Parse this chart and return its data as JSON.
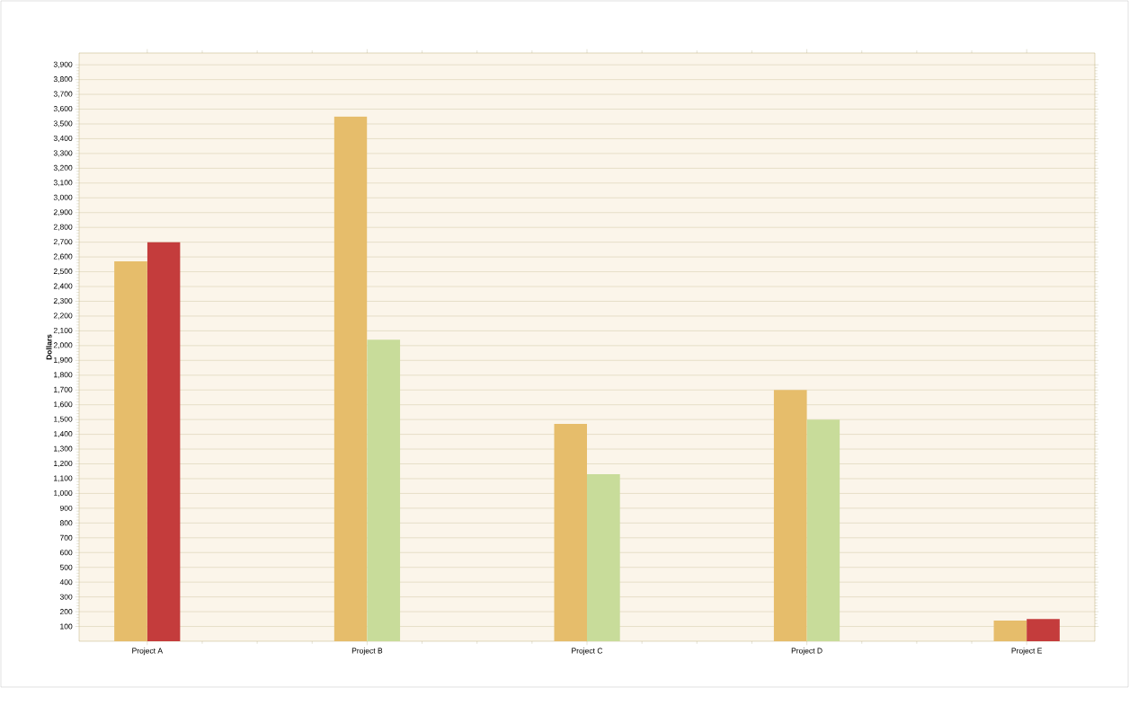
{
  "chart_data": {
    "type": "bar",
    "ylabel": "Dollars",
    "categories": [
      "Project A",
      "Project B",
      "Project C",
      "Project D",
      "Project E"
    ],
    "series": [
      {
        "color": "#e6bd6b",
        "values": [
          2570,
          3550,
          1470,
          1700,
          140
        ]
      },
      {
        "colors": [
          "#c43c3c",
          "#c8dc9a",
          "#c8dc9a",
          "#c8dc9a",
          "#c43c3c"
        ],
        "values": [
          2700,
          2040,
          1130,
          1500,
          150
        ]
      }
    ],
    "ylim": [
      0,
      3980
    ],
    "yticks": [
      100,
      200,
      300,
      400,
      500,
      600,
      700,
      800,
      900,
      {
        "value": 1000,
        "label": "1,000"
      },
      {
        "value": 1100,
        "label": "1,100"
      },
      {
        "value": 1200,
        "label": "1,200"
      },
      {
        "value": 1300,
        "label": "1,300"
      },
      {
        "value": 1400,
        "label": "1,400"
      },
      {
        "value": 1500,
        "label": "1,500"
      },
      {
        "value": 1600,
        "label": "1,600"
      },
      {
        "value": 1700,
        "label": "1,700"
      },
      {
        "value": 1800,
        "label": "1,800"
      },
      {
        "value": 1900,
        "label": "1,900"
      },
      {
        "value": 2000,
        "label": "2,000"
      },
      {
        "value": 2100,
        "label": "2,100"
      },
      {
        "value": 2200,
        "label": "2,200"
      },
      {
        "value": 2300,
        "label": "2,300"
      },
      {
        "value": 2400,
        "label": "2,400"
      },
      {
        "value": 2500,
        "label": "2,500"
      },
      {
        "value": 2600,
        "label": "2,600"
      },
      {
        "value": 2700,
        "label": "2,700"
      },
      {
        "value": 2800,
        "label": "2,800"
      },
      {
        "value": 2900,
        "label": "2,900"
      },
      {
        "value": 3000,
        "label": "3,000"
      },
      {
        "value": 3100,
        "label": "3,100"
      },
      {
        "value": 3200,
        "label": "3,200"
      },
      {
        "value": 3300,
        "label": "3,300"
      },
      {
        "value": 3400,
        "label": "3,400"
      },
      {
        "value": 3500,
        "label": "3,500"
      },
      {
        "value": 3600,
        "label": "3,600"
      },
      {
        "value": 3700,
        "label": "3,700"
      },
      {
        "value": 3800,
        "label": "3,800"
      },
      {
        "value": 3900,
        "label": "3,900"
      }
    ],
    "grid": "y"
  }
}
